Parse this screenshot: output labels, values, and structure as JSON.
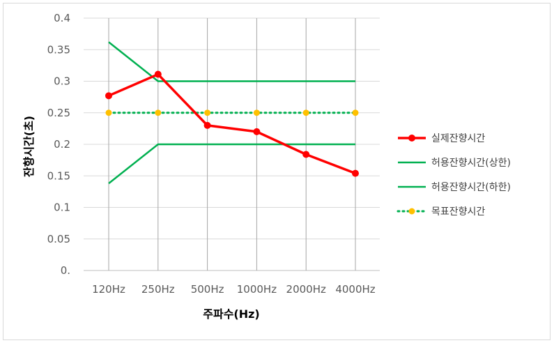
{
  "chart_data": {
    "type": "line",
    "xlabel": "주파수(Hz)",
    "ylabel": "잔향시간(초)",
    "categories": [
      "120Hz",
      "250Hz",
      "500Hz",
      "1000Hz",
      "2000Hz",
      "4000Hz"
    ],
    "ylim": [
      0,
      0.4
    ],
    "yticks": [
      "0.",
      "0.05",
      "0.1",
      "0.15",
      "0.2",
      "0.25",
      "0.3",
      "0.35",
      "0.4"
    ],
    "grid": "horizontal and vertical",
    "legend_position": "right",
    "series": [
      {
        "name": "실제잔향시간",
        "values": [
          0.277,
          0.311,
          0.23,
          0.22,
          0.184,
          0.154
        ],
        "color": "#ff0000",
        "style": "solid-marker"
      },
      {
        "name": "허용잔향시간(상한)",
        "values": [
          0.362,
          0.3,
          0.3,
          0.3,
          0.3,
          0.3
        ],
        "color": "#00b050",
        "style": "solid"
      },
      {
        "name": "허용잔향시간(하한)",
        "values": [
          0.138,
          0.2,
          0.2,
          0.2,
          0.2,
          0.2
        ],
        "color": "#00b050",
        "style": "solid"
      },
      {
        "name": "목표잔향시간",
        "values": [
          0.25,
          0.25,
          0.25,
          0.25,
          0.25,
          0.25
        ],
        "color": "#00b050",
        "marker_color": "#ffc000",
        "style": "dotted-marker"
      }
    ]
  }
}
